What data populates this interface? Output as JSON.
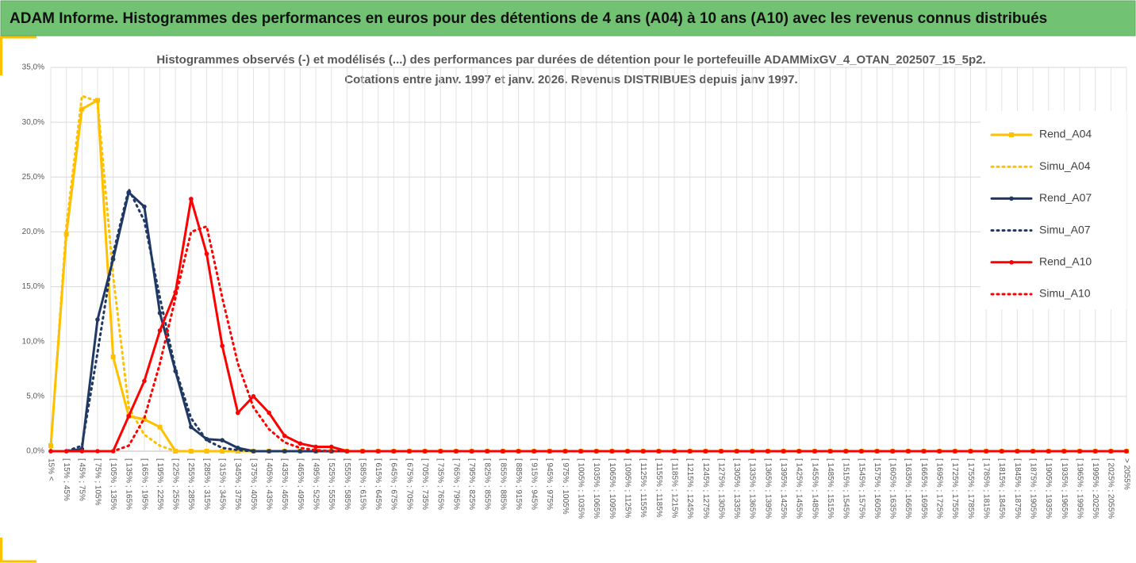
{
  "header": {
    "title": "ADAM Informe. Histogrammes des performances en euros pour des détentions de 4 ans (A04) à 10 ans (A10) avec les revenus connus distribués"
  },
  "chart_data": {
    "type": "line",
    "title": [
      "Histogrammes observés (-) et modélisés (...) des performances par durées de détention pour  le portefeuille ADAMMixGV_4_OTAN_202507_15_5p2.",
      "Cotations  entre janv. 1997 et janv. 2026. Revenus DISTRIBUES depuis janv 1997."
    ],
    "categories": [
      "15% <",
      "[ 15% ; 45%",
      "[ 45% ; 75%",
      "[ 75% ; 105%",
      "[ 105% ; 135%",
      "[ 135% ; 165%",
      "[ 165% ; 195%",
      "[ 195% ; 225%",
      "[ 225% ; 255%",
      "[ 255% ; 285%",
      "[ 285% ; 315%",
      "[ 315% ; 345%",
      "[ 345% ; 375%",
      "[ 375% ; 405%",
      "[ 405% ; 435%",
      "[ 435% ; 465%",
      "[ 465% ; 495%",
      "[ 495% ; 525%",
      "[ 525% ; 555%",
      "[ 555% ; 585%",
      "[ 585% ; 615%",
      "[ 615% ; 645%",
      "[ 645% ; 675%",
      "[ 675% ; 705%",
      "[ 705% ; 735%",
      "[ 735% ; 765%",
      "[ 765% ; 795%",
      "[ 795% ; 825%",
      "[ 825% ; 855%",
      "[ 855% ; 885%",
      "[ 885% ; 915%",
      "[ 915% ; 945%",
      "[ 945% ; 975%",
      "[ 975% ; 1005%",
      "[ 1005% ; 1035%",
      "[ 1035% ; 1065%",
      "[ 1065% ; 1095%",
      "[ 1095% ; 1125%",
      "[ 1125% ; 1155%",
      "[ 1155% ; 1185%",
      "[ 1185% ; 1215%",
      "[ 1215% ; 1245%",
      "[ 1245% ; 1275%",
      "[ 1275% ; 1305%",
      "[ 1305% ; 1335%",
      "[ 1335% ; 1365%",
      "[ 1365% ; 1395%",
      "[ 1395% ; 1425%",
      "[ 1425% ; 1455%",
      "[ 1455% ; 1485%",
      "[ 1485% ; 1515%",
      "[ 1515% ; 1545%",
      "[ 1545% ; 1575%",
      "[ 1575% ; 1605%",
      "[ 1605% ; 1635%",
      "[ 1635% ; 1665%",
      "[ 1665% ; 1695%",
      "[ 1695% ; 1725%",
      "[ 1725% ; 1755%",
      "[ 1755% ; 1785%",
      "[ 1785% ; 1815%",
      "[ 1815% ; 1845%",
      "[ 1845% ; 1875%",
      "[ 1875% ; 1905%",
      "[ 1905% ; 1935%",
      "[ 1935% ; 1965%",
      "[ 1965% ; 1995%",
      "[ 1995% ; 2025%",
      "[ 2025% ; 2055%",
      "> 2055%"
    ],
    "series": [
      {
        "name": "Rend_A04",
        "color": "#ffc000",
        "style": "solid",
        "marker": "square",
        "values": [
          0.5,
          19.8,
          31.2,
          32.0,
          8.6,
          3.2,
          2.9,
          2.2,
          0,
          0,
          0,
          0,
          0,
          0,
          0,
          0,
          0,
          0,
          0,
          0,
          0,
          0,
          0,
          0,
          0,
          0,
          0,
          0,
          0,
          0,
          0,
          0,
          0,
          0,
          0,
          0,
          0,
          0,
          0,
          0,
          0,
          0,
          0,
          0,
          0,
          0,
          0,
          0,
          0,
          0,
          0,
          0,
          0,
          0,
          0,
          0,
          0,
          0,
          0,
          0,
          0,
          0,
          0,
          0,
          0,
          0,
          0,
          0,
          0,
          0
        ]
      },
      {
        "name": "Simu_A04",
        "color": "#ffc000",
        "style": "dotted",
        "values": [
          0.3,
          20.5,
          32.4,
          31.9,
          16.0,
          4.0,
          1.5,
          0.5,
          0,
          0,
          0,
          0,
          0,
          0,
          0,
          0,
          0,
          0,
          0,
          0,
          0,
          0,
          0,
          0,
          0,
          0,
          0,
          0,
          0,
          0,
          0,
          0,
          0,
          0,
          0,
          0,
          0,
          0,
          0,
          0,
          0,
          0,
          0,
          0,
          0,
          0,
          0,
          0,
          0,
          0,
          0,
          0,
          0,
          0,
          0,
          0,
          0,
          0,
          0,
          0,
          0,
          0,
          0,
          0,
          0,
          0,
          0,
          0,
          0,
          0
        ]
      },
      {
        "name": "Rend_A07",
        "color": "#1f3864",
        "style": "solid",
        "marker": "circle",
        "values": [
          0,
          0,
          0.2,
          12.0,
          17.5,
          23.6,
          22.3,
          12.6,
          7.3,
          2.2,
          1.1,
          1.0,
          0.3,
          0,
          0,
          0,
          0,
          0,
          0,
          0,
          0,
          0,
          0,
          0,
          0,
          0,
          0,
          0,
          0,
          0,
          0,
          0,
          0,
          0,
          0,
          0,
          0,
          0,
          0,
          0,
          0,
          0,
          0,
          0,
          0,
          0,
          0,
          0,
          0,
          0,
          0,
          0,
          0,
          0,
          0,
          0,
          0,
          0,
          0,
          0,
          0,
          0,
          0,
          0,
          0,
          0,
          0,
          0,
          0,
          0
        ]
      },
      {
        "name": "Simu_A07",
        "color": "#1f3864",
        "style": "dotted",
        "values": [
          0,
          0,
          0.5,
          9.0,
          18.0,
          23.9,
          21.0,
          14.0,
          7.5,
          3.0,
          1.0,
          0.3,
          0.1,
          0,
          0,
          0,
          0,
          0,
          0,
          0,
          0,
          0,
          0,
          0,
          0,
          0,
          0,
          0,
          0,
          0,
          0,
          0,
          0,
          0,
          0,
          0,
          0,
          0,
          0,
          0,
          0,
          0,
          0,
          0,
          0,
          0,
          0,
          0,
          0,
          0,
          0,
          0,
          0,
          0,
          0,
          0,
          0,
          0,
          0,
          0,
          0,
          0,
          0,
          0,
          0,
          0,
          0,
          0,
          0,
          0
        ]
      },
      {
        "name": "Rend_A10",
        "color": "#ff0000",
        "style": "solid",
        "marker": "circle",
        "values": [
          0,
          0,
          0,
          0,
          0,
          3.2,
          6.4,
          11.0,
          14.5,
          23.0,
          18.0,
          9.6,
          3.5,
          5.0,
          3.5,
          1.4,
          0.7,
          0.4,
          0.4,
          0,
          0,
          0,
          0,
          0,
          0,
          0,
          0,
          0,
          0,
          0,
          0,
          0,
          0,
          0,
          0,
          0,
          0,
          0,
          0,
          0,
          0,
          0,
          0,
          0,
          0,
          0,
          0,
          0,
          0,
          0,
          0,
          0,
          0,
          0,
          0,
          0,
          0,
          0,
          0,
          0,
          0,
          0,
          0,
          0,
          0,
          0,
          0,
          0,
          0,
          0
        ]
      },
      {
        "name": "Simu_A10",
        "color": "#ff0000",
        "style": "dotted",
        "values": [
          0,
          0,
          0,
          0,
          0,
          0.5,
          3.0,
          8.0,
          14.0,
          20.0,
          20.5,
          14.0,
          8.0,
          4.0,
          2.0,
          0.8,
          0.3,
          0.1,
          0,
          0,
          0,
          0,
          0,
          0,
          0,
          0,
          0,
          0,
          0,
          0,
          0,
          0,
          0,
          0,
          0,
          0,
          0,
          0,
          0,
          0,
          0,
          0,
          0,
          0,
          0,
          0,
          0,
          0,
          0,
          0,
          0,
          0,
          0,
          0,
          0,
          0,
          0,
          0,
          0,
          0,
          0,
          0,
          0,
          0,
          0,
          0,
          0,
          0,
          0,
          0
        ]
      }
    ],
    "ylim": [
      0,
      35
    ],
    "yticks": [
      {
        "value": 0,
        "label": "0,0%"
      },
      {
        "value": 5,
        "label": "5,0%"
      },
      {
        "value": 10,
        "label": "10,0%"
      },
      {
        "value": 15,
        "label": "15,0%"
      },
      {
        "value": 20,
        "label": "20,0%"
      },
      {
        "value": 25,
        "label": "25,0%"
      },
      {
        "value": 30,
        "label": "30,0%"
      },
      {
        "value": 35,
        "label": "35,0%"
      }
    ],
    "grid": true,
    "legend": "right"
  }
}
